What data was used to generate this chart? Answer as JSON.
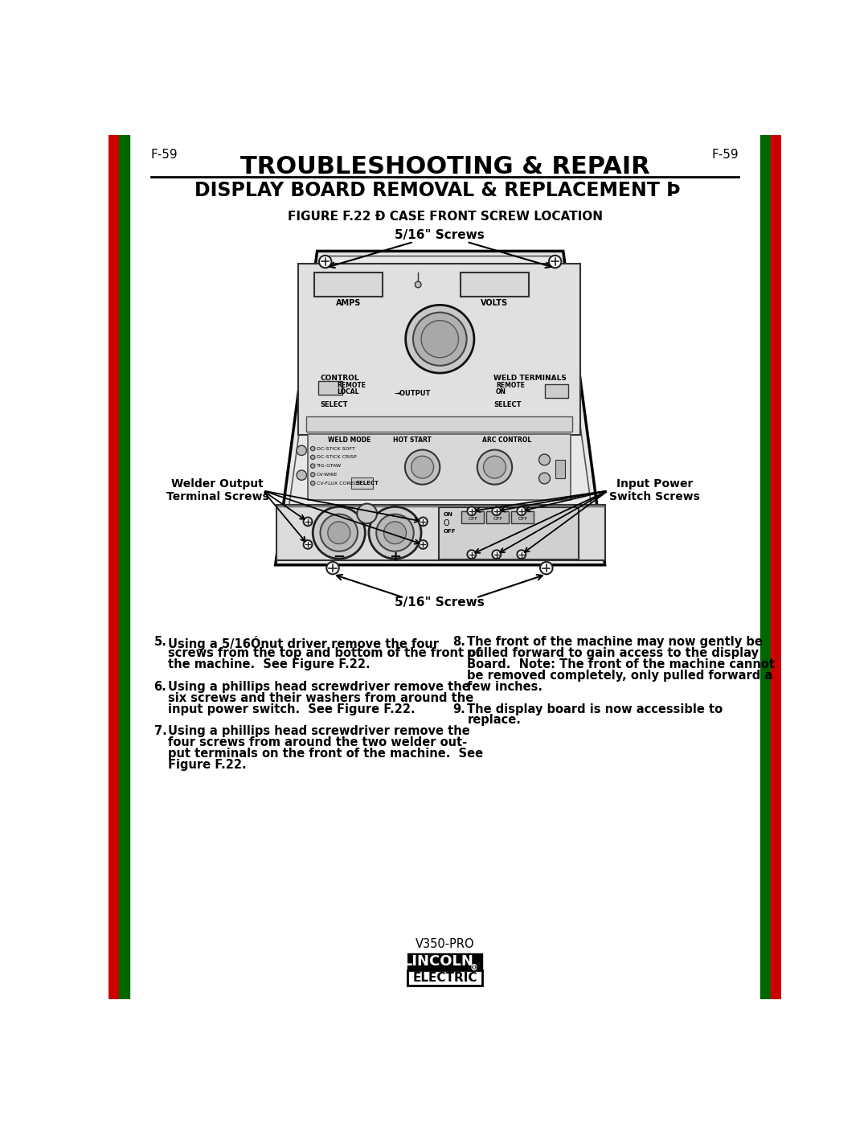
{
  "page_number": "F-59",
  "title1": "TROUBLESHOOTING & REPAIR",
  "title2": "DISPLAY BOARD REMOVAL & REPLACEMENT Þ",
  "figure_title": "FIGURE F.22 Ð CASE FRONT SCREW LOCATION",
  "label_top_screws": "5/16\" Screws",
  "label_bottom_screws": "5/16\" Screws",
  "label_welder_output": "Welder Output\nTerminal Screws",
  "label_input_power": "Input Power\nSwitch Screws",
  "bg_color": "#ffffff",
  "sidebar_red": "#cc0000",
  "sidebar_green": "#006600",
  "footer_model": "V350-PRO",
  "body_fontsize": 10.5,
  "steps_left": [
    [
      5,
      "Using a 5/16Ónut driver remove the four",
      "screws from the top and bottom of the front of",
      "the machine.  See Figure F.22."
    ],
    [
      6,
      "Using a phillips head screwdriver remove the",
      "six screws and their washers from around the",
      "input power switch.  See Figure F.22."
    ],
    [
      7,
      "Using a phillips head screwdriver remove the",
      "four screws from around the two welder out-",
      "put terminals on the front of the machine.  See",
      "Figure F.22."
    ]
  ],
  "steps_right": [
    [
      8,
      "The front of the machine may now gently be",
      "pulled forward to gain access to the display",
      "Board.  Note: The front of the machine cannot",
      "be removed completely, only pulled forward a",
      "few inches."
    ],
    [
      9,
      "The display board is now accessible to",
      "replace."
    ]
  ]
}
